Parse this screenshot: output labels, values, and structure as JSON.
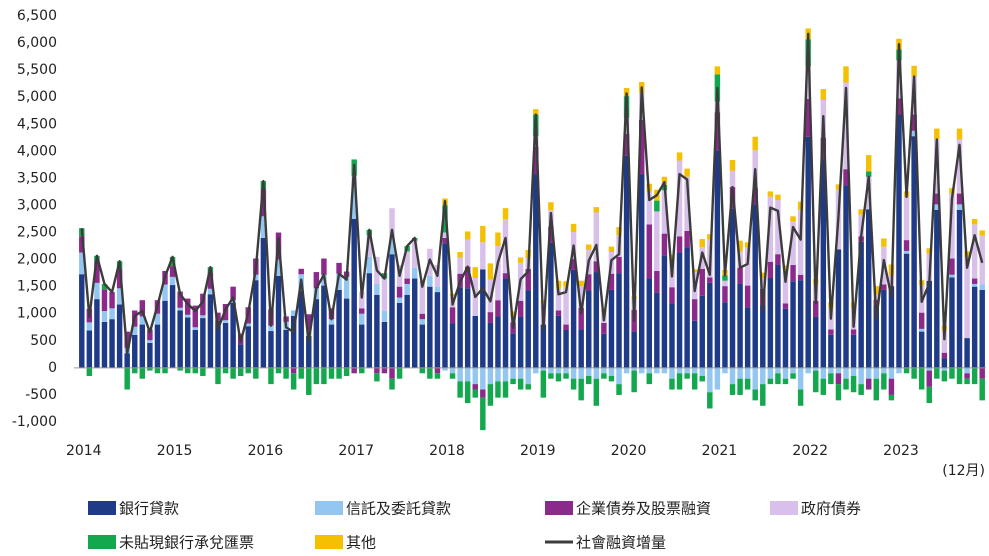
{
  "chart_data": {
    "type": "stacked-bar-line",
    "categories": [
      "2014",
      null,
      null,
      null,
      null,
      null,
      null,
      null,
      null,
      null,
      null,
      null,
      "2015",
      null,
      null,
      null,
      null,
      null,
      null,
      null,
      null,
      null,
      null,
      null,
      "2016",
      null,
      null,
      null,
      null,
      null,
      null,
      null,
      null,
      null,
      null,
      null,
      "2017",
      null,
      null,
      null,
      null,
      null,
      null,
      null,
      null,
      null,
      null,
      null,
      "2018",
      null,
      null,
      null,
      null,
      null,
      null,
      null,
      null,
      null,
      null,
      null,
      "2019",
      null,
      null,
      null,
      null,
      null,
      null,
      null,
      null,
      null,
      null,
      null,
      "2020",
      null,
      null,
      null,
      null,
      null,
      null,
      null,
      null,
      null,
      null,
      null,
      "2021",
      null,
      null,
      null,
      null,
      null,
      null,
      null,
      null,
      null,
      null,
      null,
      "2022",
      null,
      null,
      null,
      null,
      null,
      null,
      null,
      null,
      null,
      null,
      null,
      "2023",
      null,
      null,
      null,
      null,
      null,
      null,
      null,
      null,
      null,
      null,
      null
    ],
    "annotation": "(12月)",
    "ylim": [
      -1000,
      6500
    ],
    "yticks": [
      {
        "value": -1000,
        "label": "-1,000"
      },
      -500,
      0,
      500,
      {
        "value": 1000,
        "label": "1,000"
      },
      {
        "value": 1500,
        "label": "1,500"
      },
      {
        "value": 2000,
        "label": "2,000"
      },
      {
        "value": 2500,
        "label": "2,500"
      },
      {
        "value": 3000,
        "label": "3,000"
      },
      {
        "value": 3500,
        "label": "3,500"
      },
      {
        "value": 4000,
        "label": "4,000"
      },
      {
        "value": 4500,
        "label": "4,500"
      },
      {
        "value": 5000,
        "label": "5,000"
      },
      {
        "value": 5500,
        "label": "5,500"
      },
      {
        "value": 6000,
        "label": "6,000"
      },
      {
        "value": 6500,
        "label": "6,500"
      }
    ],
    "grid": false,
    "series": [
      {
        "name": "銀行貸款",
        "color": "#1f3b87",
        "values": [
          1730,
          690,
          1270,
          850,
          900,
          1170,
          270,
          610,
          800,
          460,
          800,
          1240,
          1530,
          1060,
          930,
          700,
          920,
          1360,
          870,
          830,
          1200,
          430,
          770,
          1620,
          2400,
          680,
          1700,
          700,
          960,
          1430,
          590,
          1270,
          1520,
          800,
          1440,
          1280,
          2750,
          800,
          1750,
          1350,
          850,
          2100,
          1200,
          1350,
          1650,
          800,
          1500,
          1400,
          2300,
          820,
          1490,
          1470,
          960,
          1820,
          830,
          950,
          1650,
          640,
          940,
          1430,
          3580,
          800,
          2310,
          960,
          700,
          1810,
          710,
          1430,
          1770,
          630,
          1440,
          1750,
          3920,
          670,
          3580,
          1650,
          1390,
          2080,
          1190,
          2130,
          2230,
          870,
          1330,
          1570,
          4020,
          1210,
          2940,
          1550,
          1120,
          3020,
          1160,
          1660,
          1900,
          1090,
          1600,
          1620,
          4270,
          940,
          3850,
          610,
          2190,
          3370,
          610,
          2330,
          2930,
          1160,
          1440,
          1510,
          4680,
          2110,
          4280,
          670,
          1610,
          2920,
          180,
          1670,
          2920,
          550,
          1500,
          1440
        ]
      },
      {
        "name": "信託及委託貸款",
        "color": "#93c6f1",
        "values": [
          400,
          150,
          300,
          200,
          200,
          300,
          100,
          150,
          150,
          50,
          200,
          300,
          150,
          50,
          50,
          50,
          50,
          100,
          0,
          50,
          50,
          0,
          50,
          100,
          400,
          100,
          300,
          150,
          100,
          300,
          100,
          200,
          200,
          100,
          300,
          400,
          600,
          200,
          300,
          200,
          200,
          250,
          100,
          200,
          200,
          100,
          200,
          100,
          -50,
          -100,
          -250,
          -250,
          -300,
          -400,
          -300,
          -250,
          -250,
          -200,
          -200,
          -300,
          -100,
          -50,
          -100,
          -100,
          -100,
          -200,
          -200,
          -150,
          -200,
          -100,
          -150,
          -300,
          -100,
          -50,
          -100,
          -100,
          -100,
          -100,
          -200,
          -100,
          -100,
          -100,
          -150,
          -450,
          -400,
          -100,
          -300,
          -200,
          -200,
          -400,
          -300,
          -200,
          -100,
          -200,
          -100,
          -400,
          -100,
          -50,
          -200,
          -100,
          -100,
          -200,
          -150,
          -300,
          -200,
          -200,
          -100,
          -200,
          -100,
          50,
          100,
          50,
          -50,
          100,
          -50,
          50,
          100,
          -100,
          50,
          100
        ]
      },
      {
        "name": "企業債券及股票融資",
        "color": "#8c2a8c",
        "values": [
          300,
          250,
          400,
          400,
          300,
          350,
          300,
          300,
          300,
          200,
          250,
          250,
          200,
          300,
          300,
          400,
          400,
          300,
          150,
          300,
          250,
          200,
          300,
          300,
          500,
          300,
          500,
          100,
          -100,
          100,
          300,
          300,
          300,
          200,
          200,
          100,
          -100,
          100,
          0,
          -100,
          -100,
          -200,
          200,
          100,
          0,
          100,
          0,
          -100,
          100,
          300,
          250,
          400,
          -100,
          -150,
          200,
          300,
          100,
          200,
          300,
          400,
          500,
          0,
          300,
          100,
          100,
          200,
          400,
          300,
          200,
          200,
          300,
          300,
          400,
          400,
          1000,
          1000,
          400,
          400,
          300,
          300,
          300,
          400,
          500,
          100,
          700,
          300,
          400,
          300,
          400,
          300,
          300,
          300,
          200,
          100,
          300,
          100,
          700,
          300,
          400,
          100,
          -200,
          300,
          100,
          100,
          -200,
          100,
          100,
          -300,
          300,
          200,
          300,
          300,
          -300,
          200,
          100,
          300,
          200,
          -100,
          100,
          -200
        ]
      },
      {
        "name": "政府債券",
        "color": "#d8c0ea",
        "values": [
          0,
          0,
          0,
          0,
          0,
          0,
          0,
          0,
          0,
          0,
          0,
          0,
          0,
          0,
          0,
          0,
          0,
          0,
          0,
          0,
          0,
          0,
          0,
          0,
          0,
          0,
          0,
          0,
          0,
          0,
          0,
          0,
          0,
          0,
          0,
          0,
          200,
          300,
          400,
          500,
          600,
          600,
          400,
          500,
          500,
          600,
          500,
          400,
          100,
          200,
          300,
          500,
          700,
          500,
          600,
          1000,
          1000,
          100,
          700,
          200,
          200,
          400,
          300,
          400,
          700,
          500,
          400,
          450,
          900,
          200,
          400,
          400,
          300,
          200,
          500,
          600,
          1100,
          800,
          500,
          1400,
          1000,
          500,
          400,
          700,
          200,
          100,
          300,
          300,
          700,
          700,
          200,
          1200,
          1000,
          600,
          800,
          1200,
          600,
          300,
          700,
          400,
          1100,
          1600,
          400,
          400,
          600,
          100,
          700,
          200,
          700,
          800,
          700,
          500,
          500,
          1000,
          400,
          1200,
          1000,
          1500,
          1000,
          900
        ]
      },
      {
        "name": "未貼現銀行承兌匯票",
        "color": "#13a84e",
        "values": [
          150,
          -150,
          100,
          100,
          0,
          150,
          -400,
          -100,
          -200,
          -50,
          -100,
          -100,
          170,
          -50,
          -100,
          -100,
          -150,
          100,
          -300,
          -100,
          -200,
          -150,
          -100,
          -200,
          150,
          -300,
          -100,
          -200,
          -300,
          -200,
          -500,
          -300,
          -300,
          -200,
          -200,
          -150,
          300,
          -100,
          100,
          -150,
          100,
          -200,
          -200,
          100,
          50,
          -100,
          -200,
          -100,
          500,
          -100,
          -300,
          -400,
          -150,
          -600,
          -400,
          -300,
          -300,
          -100,
          -200,
          -100,
          400,
          -500,
          -100,
          -150,
          -100,
          -200,
          -400,
          -150,
          -500,
          -100,
          -100,
          -200,
          400,
          -400,
          0,
          -200,
          200,
          100,
          -200,
          -300,
          -100,
          -300,
          -100,
          -300,
          500,
          100,
          -200,
          -300,
          -200,
          -200,
          -400,
          -100,
          -200,
          -100,
          -100,
          -300,
          500,
          -400,
          -300,
          -200,
          -300,
          -200,
          -300,
          -200,
          100,
          -400,
          -300,
          -100,
          200,
          -100,
          -200,
          -400,
          -300,
          -200,
          -200,
          -200,
          -300,
          -100,
          -300,
          -400
        ]
      },
      {
        "name": "其他",
        "color": "#f5c002",
        "values": [
          0,
          0,
          0,
          0,
          0,
          0,
          0,
          0,
          0,
          0,
          0,
          0,
          0,
          0,
          0,
          0,
          0,
          0,
          0,
          0,
          0,
          0,
          0,
          0,
          0,
          0,
          0,
          0,
          0,
          0,
          0,
          0,
          0,
          0,
          0,
          0,
          0,
          0,
          0,
          0,
          0,
          0,
          0,
          0,
          0,
          0,
          0,
          0,
          130,
          50,
          100,
          150,
          200,
          300,
          300,
          250,
          200,
          100,
          100,
          150,
          100,
          50,
          150,
          150,
          100,
          150,
          100,
          100,
          100,
          50,
          100,
          150,
          150,
          50,
          200,
          150,
          200,
          150,
          100,
          150,
          150,
          50,
          150,
          100,
          150,
          100,
          200,
          200,
          100,
          250,
          100,
          100,
          100,
          100,
          100,
          150,
          200,
          100,
          200,
          100,
          100,
          300,
          100,
          100,
          300,
          150,
          150,
          200,
          200,
          100,
          200,
          100,
          100,
          200,
          100,
          100,
          200,
          100,
          100,
          100
        ]
      },
      {
        "name": "社會融資增量",
        "color": "#3c3c3c",
        "type": "line",
        "values": [
          2580,
          940,
          2070,
          1550,
          1400,
          1970,
          270,
          960,
          1050,
          660,
          1150,
          1690,
          2050,
          1360,
          1180,
          1050,
          1220,
          1860,
          720,
          1080,
          1300,
          480,
          1020,
          1820,
          3450,
          780,
          2400,
          750,
          660,
          1630,
          490,
          1470,
          1720,
          900,
          1740,
          1630,
          3750,
          1300,
          2550,
          1800,
          1650,
          2550,
          1700,
          2250,
          2400,
          1500,
          2000,
          1700,
          3080,
          1170,
          1590,
          1870,
          1310,
          1470,
          1230,
          1950,
          2400,
          740,
          1640,
          1780,
          4680,
          700,
          2860,
          1360,
          1400,
          2260,
          1010,
          1980,
          2270,
          880,
          1990,
          2100,
          5070,
          870,
          5180,
          3100,
          3190,
          3430,
          1690,
          3580,
          3480,
          1420,
          2130,
          1720,
          5170,
          1710,
          3340,
          1850,
          1920,
          3670,
          1060,
          2960,
          2900,
          1590,
          2600,
          2370,
          6170,
          1190,
          4650,
          910,
          2790,
          5170,
          760,
          2430,
          3530,
          910,
          1990,
          1310,
          5980,
          3160,
          5380,
          1220,
          1560,
          4220,
          530,
          3120,
          4120,
          1850,
          2450,
          1940
        ]
      }
    ]
  }
}
